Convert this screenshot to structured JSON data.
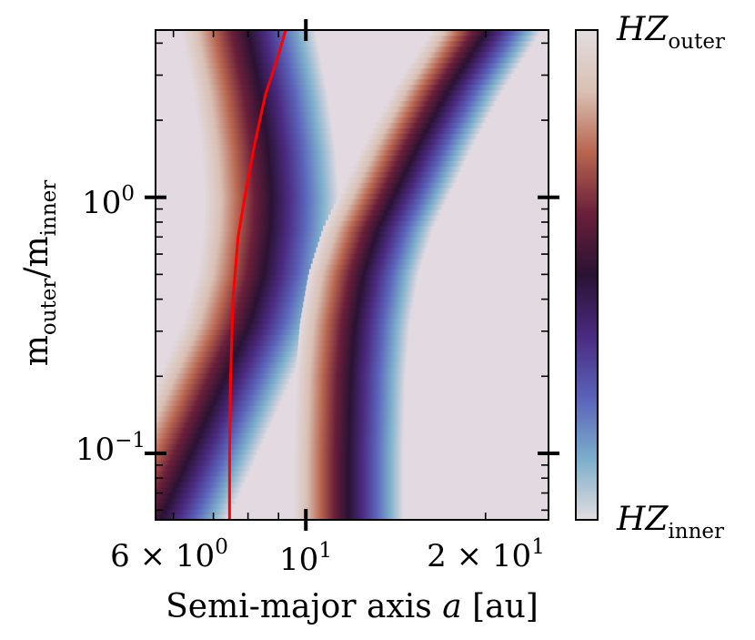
{
  "chart_data": {
    "type": "heatmap",
    "xlabel": {
      "text": "Semi-major axis ",
      "symbol": "a",
      "unit": " [au]"
    },
    "ylabel": {
      "base": "m",
      "sub1": "outer",
      "sep": "/m",
      "sub2": "inner"
    },
    "x_scale": "log",
    "y_scale": "log",
    "xlim": [
      5.6,
      25.5
    ],
    "ylim": [
      0.055,
      4.5
    ],
    "x_major_ticks": [
      {
        "value": 6,
        "mantissa": "6",
        "times": " × ",
        "base": "10",
        "exp": "0"
      },
      {
        "value": 10,
        "mantissa": "",
        "times": "",
        "base": "10",
        "exp": "1"
      },
      {
        "value": 20,
        "mantissa": "2",
        "times": " × ",
        "base": "10",
        "exp": "1"
      }
    ],
    "y_major_ticks": [
      {
        "value": 0.1,
        "base": "10",
        "exp": "−1"
      },
      {
        "value": 1,
        "base": "10",
        "exp": "0"
      }
    ],
    "colorbar": {
      "top_label": {
        "symbol": "HZ",
        "sub": "outer"
      },
      "bottom_label": {
        "symbol": "HZ",
        "sub": "inner"
      },
      "colors": [
        "#e2dde0",
        "#7badcb",
        "#5a62b9",
        "#4a2a80",
        "#2a1233",
        "#6a1f3a",
        "#b8654f",
        "#d9c0b3",
        "#e2dde0"
      ]
    },
    "background_color": "#e2dae0",
    "bands": [
      {
        "name": "",
        "points": [
          [
            5.6,
            0.055
          ],
          [
            6.3,
            0.1
          ],
          [
            7.2,
            0.2
          ],
          [
            7.9,
            0.32
          ],
          [
            8.35,
            0.5
          ],
          [
            8.55,
            0.75
          ],
          [
            8.6,
            1.0
          ],
          [
            8.5,
            1.5
          ],
          [
            8.25,
            2.5
          ],
          [
            7.85,
            4.5
          ]
        ],
        "width_log": 0.055
      },
      {
        "name": "",
        "points": [
          [
            11.6,
            0.055
          ],
          [
            11.6,
            0.1
          ],
          [
            11.7,
            0.2
          ],
          [
            11.9,
            0.32
          ],
          [
            12.3,
            0.5
          ],
          [
            13.0,
            0.75
          ],
          [
            13.8,
            1.0
          ],
          [
            15.2,
            1.6
          ],
          [
            17.0,
            2.6
          ],
          [
            19.8,
            4.5
          ]
        ],
        "width_log": 0.045
      }
    ],
    "red_curve": {
      "color": "#ff0000",
      "points": [
        [
          7.45,
          0.055
        ],
        [
          7.45,
          0.1
        ],
        [
          7.48,
          0.2
        ],
        [
          7.55,
          0.4
        ],
        [
          7.7,
          0.7
        ],
        [
          7.9,
          1.0
        ],
        [
          8.2,
          1.6
        ],
        [
          8.55,
          2.5
        ],
        [
          9.0,
          3.6
        ],
        [
          9.25,
          4.5
        ]
      ]
    }
  }
}
